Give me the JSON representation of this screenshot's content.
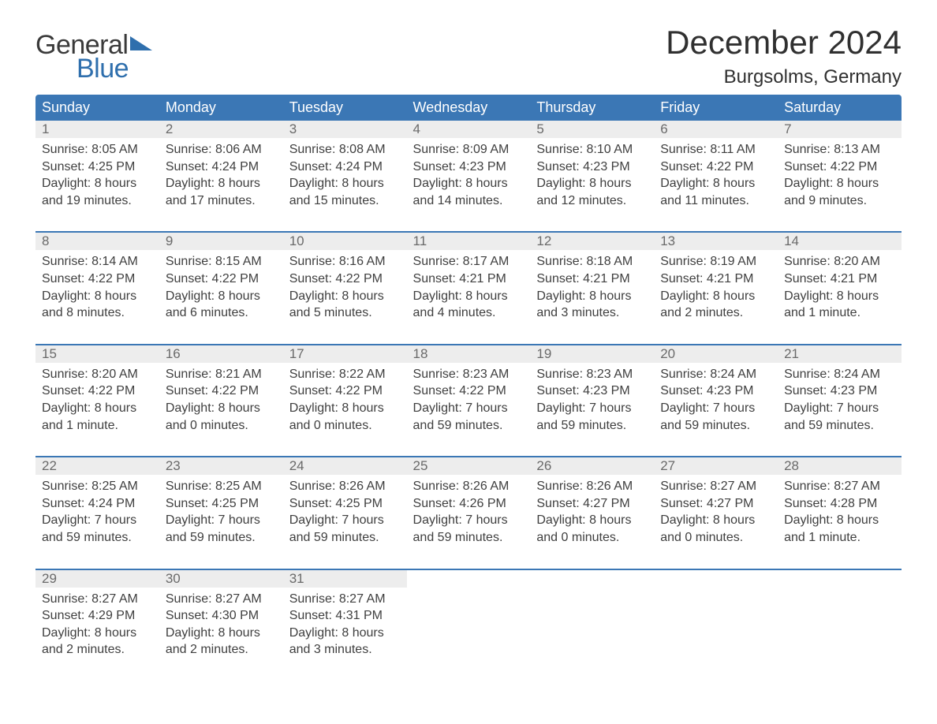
{
  "logo": {
    "text1": "General",
    "text2": "Blue",
    "tri_color": "#2f6fad"
  },
  "title": "December 2024",
  "location": "Burgsolms, Germany",
  "colors": {
    "header_bg": "#3b77b5",
    "header_text": "#ffffff",
    "row_border": "#3b77b5",
    "daynum_bg": "#ededed",
    "daynum_text": "#6a6a6a",
    "body_text": "#3f3f3f",
    "page_bg": "#ffffff",
    "logo_blue": "#2f6fad",
    "logo_gray": "#3a3a3a"
  },
  "day_headers": [
    "Sunday",
    "Monday",
    "Tuesday",
    "Wednesday",
    "Thursday",
    "Friday",
    "Saturday"
  ],
  "weeks": [
    [
      {
        "n": "1",
        "sr": "Sunrise: 8:05 AM",
        "ss": "Sunset: 4:25 PM",
        "d1": "Daylight: 8 hours",
        "d2": "and 19 minutes."
      },
      {
        "n": "2",
        "sr": "Sunrise: 8:06 AM",
        "ss": "Sunset: 4:24 PM",
        "d1": "Daylight: 8 hours",
        "d2": "and 17 minutes."
      },
      {
        "n": "3",
        "sr": "Sunrise: 8:08 AM",
        "ss": "Sunset: 4:24 PM",
        "d1": "Daylight: 8 hours",
        "d2": "and 15 minutes."
      },
      {
        "n": "4",
        "sr": "Sunrise: 8:09 AM",
        "ss": "Sunset: 4:23 PM",
        "d1": "Daylight: 8 hours",
        "d2": "and 14 minutes."
      },
      {
        "n": "5",
        "sr": "Sunrise: 8:10 AM",
        "ss": "Sunset: 4:23 PM",
        "d1": "Daylight: 8 hours",
        "d2": "and 12 minutes."
      },
      {
        "n": "6",
        "sr": "Sunrise: 8:11 AM",
        "ss": "Sunset: 4:22 PM",
        "d1": "Daylight: 8 hours",
        "d2": "and 11 minutes."
      },
      {
        "n": "7",
        "sr": "Sunrise: 8:13 AM",
        "ss": "Sunset: 4:22 PM",
        "d1": "Daylight: 8 hours",
        "d2": "and 9 minutes."
      }
    ],
    [
      {
        "n": "8",
        "sr": "Sunrise: 8:14 AM",
        "ss": "Sunset: 4:22 PM",
        "d1": "Daylight: 8 hours",
        "d2": "and 8 minutes."
      },
      {
        "n": "9",
        "sr": "Sunrise: 8:15 AM",
        "ss": "Sunset: 4:22 PM",
        "d1": "Daylight: 8 hours",
        "d2": "and 6 minutes."
      },
      {
        "n": "10",
        "sr": "Sunrise: 8:16 AM",
        "ss": "Sunset: 4:22 PM",
        "d1": "Daylight: 8 hours",
        "d2": "and 5 minutes."
      },
      {
        "n": "11",
        "sr": "Sunrise: 8:17 AM",
        "ss": "Sunset: 4:21 PM",
        "d1": "Daylight: 8 hours",
        "d2": "and 4 minutes."
      },
      {
        "n": "12",
        "sr": "Sunrise: 8:18 AM",
        "ss": "Sunset: 4:21 PM",
        "d1": "Daylight: 8 hours",
        "d2": "and 3 minutes."
      },
      {
        "n": "13",
        "sr": "Sunrise: 8:19 AM",
        "ss": "Sunset: 4:21 PM",
        "d1": "Daylight: 8 hours",
        "d2": "and 2 minutes."
      },
      {
        "n": "14",
        "sr": "Sunrise: 8:20 AM",
        "ss": "Sunset: 4:21 PM",
        "d1": "Daylight: 8 hours",
        "d2": "and 1 minute."
      }
    ],
    [
      {
        "n": "15",
        "sr": "Sunrise: 8:20 AM",
        "ss": "Sunset: 4:22 PM",
        "d1": "Daylight: 8 hours",
        "d2": "and 1 minute."
      },
      {
        "n": "16",
        "sr": "Sunrise: 8:21 AM",
        "ss": "Sunset: 4:22 PM",
        "d1": "Daylight: 8 hours",
        "d2": "and 0 minutes."
      },
      {
        "n": "17",
        "sr": "Sunrise: 8:22 AM",
        "ss": "Sunset: 4:22 PM",
        "d1": "Daylight: 8 hours",
        "d2": "and 0 minutes."
      },
      {
        "n": "18",
        "sr": "Sunrise: 8:23 AM",
        "ss": "Sunset: 4:22 PM",
        "d1": "Daylight: 7 hours",
        "d2": "and 59 minutes."
      },
      {
        "n": "19",
        "sr": "Sunrise: 8:23 AM",
        "ss": "Sunset: 4:23 PM",
        "d1": "Daylight: 7 hours",
        "d2": "and 59 minutes."
      },
      {
        "n": "20",
        "sr": "Sunrise: 8:24 AM",
        "ss": "Sunset: 4:23 PM",
        "d1": "Daylight: 7 hours",
        "d2": "and 59 minutes."
      },
      {
        "n": "21",
        "sr": "Sunrise: 8:24 AM",
        "ss": "Sunset: 4:23 PM",
        "d1": "Daylight: 7 hours",
        "d2": "and 59 minutes."
      }
    ],
    [
      {
        "n": "22",
        "sr": "Sunrise: 8:25 AM",
        "ss": "Sunset: 4:24 PM",
        "d1": "Daylight: 7 hours",
        "d2": "and 59 minutes."
      },
      {
        "n": "23",
        "sr": "Sunrise: 8:25 AM",
        "ss": "Sunset: 4:25 PM",
        "d1": "Daylight: 7 hours",
        "d2": "and 59 minutes."
      },
      {
        "n": "24",
        "sr": "Sunrise: 8:26 AM",
        "ss": "Sunset: 4:25 PM",
        "d1": "Daylight: 7 hours",
        "d2": "and 59 minutes."
      },
      {
        "n": "25",
        "sr": "Sunrise: 8:26 AM",
        "ss": "Sunset: 4:26 PM",
        "d1": "Daylight: 7 hours",
        "d2": "and 59 minutes."
      },
      {
        "n": "26",
        "sr": "Sunrise: 8:26 AM",
        "ss": "Sunset: 4:27 PM",
        "d1": "Daylight: 8 hours",
        "d2": "and 0 minutes."
      },
      {
        "n": "27",
        "sr": "Sunrise: 8:27 AM",
        "ss": "Sunset: 4:27 PM",
        "d1": "Daylight: 8 hours",
        "d2": "and 0 minutes."
      },
      {
        "n": "28",
        "sr": "Sunrise: 8:27 AM",
        "ss": "Sunset: 4:28 PM",
        "d1": "Daylight: 8 hours",
        "d2": "and 1 minute."
      }
    ],
    [
      {
        "n": "29",
        "sr": "Sunrise: 8:27 AM",
        "ss": "Sunset: 4:29 PM",
        "d1": "Daylight: 8 hours",
        "d2": "and 2 minutes."
      },
      {
        "n": "30",
        "sr": "Sunrise: 8:27 AM",
        "ss": "Sunset: 4:30 PM",
        "d1": "Daylight: 8 hours",
        "d2": "and 2 minutes."
      },
      {
        "n": "31",
        "sr": "Sunrise: 8:27 AM",
        "ss": "Sunset: 4:31 PM",
        "d1": "Daylight: 8 hours",
        "d2": "and 3 minutes."
      },
      null,
      null,
      null,
      null
    ]
  ]
}
